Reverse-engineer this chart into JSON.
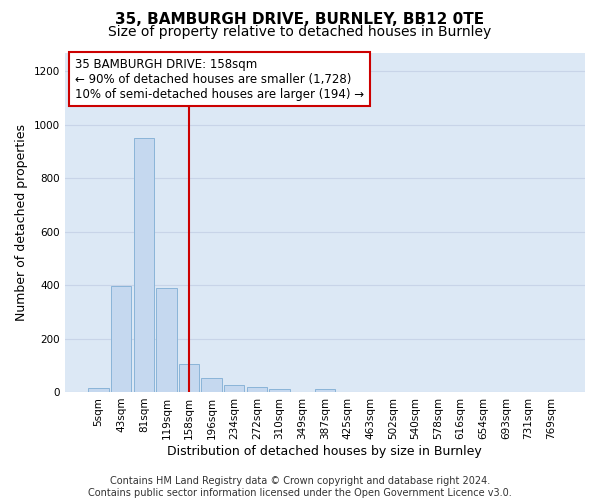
{
  "title1": "35, BAMBURGH DRIVE, BURNLEY, BB12 0TE",
  "title2": "Size of property relative to detached houses in Burnley",
  "xlabel": "Distribution of detached houses by size in Burnley",
  "ylabel": "Number of detached properties",
  "categories": [
    "5sqm",
    "43sqm",
    "81sqm",
    "119sqm",
    "158sqm",
    "196sqm",
    "234sqm",
    "272sqm",
    "310sqm",
    "349sqm",
    "387sqm",
    "425sqm",
    "463sqm",
    "502sqm",
    "540sqm",
    "578sqm",
    "616sqm",
    "654sqm",
    "693sqm",
    "731sqm",
    "769sqm"
  ],
  "values": [
    15,
    395,
    950,
    390,
    105,
    52,
    25,
    17,
    12,
    0,
    10,
    0,
    0,
    0,
    0,
    0,
    0,
    0,
    0,
    0,
    0
  ],
  "bar_color": "#c5d8ef",
  "bar_edge_color": "#8ab4d8",
  "vline_color": "#cc0000",
  "annotation_text": "35 BAMBURGH DRIVE: 158sqm\n← 90% of detached houses are smaller (1,728)\n10% of semi-detached houses are larger (194) →",
  "annotation_box_color": "#ffffff",
  "annotation_box_edge": "#cc0000",
  "ylim": [
    0,
    1270
  ],
  "yticks": [
    0,
    200,
    400,
    600,
    800,
    1000,
    1200
  ],
  "grid_color": "#c8d4e8",
  "bg_color": "#dce8f5",
  "fig_bg_color": "#ffffff",
  "footer": "Contains HM Land Registry data © Crown copyright and database right 2024.\nContains public sector information licensed under the Open Government Licence v3.0.",
  "title1_fontsize": 11,
  "title2_fontsize": 10,
  "xlabel_fontsize": 9,
  "ylabel_fontsize": 9,
  "tick_fontsize": 7.5,
  "annot_fontsize": 8.5,
  "footer_fontsize": 7
}
